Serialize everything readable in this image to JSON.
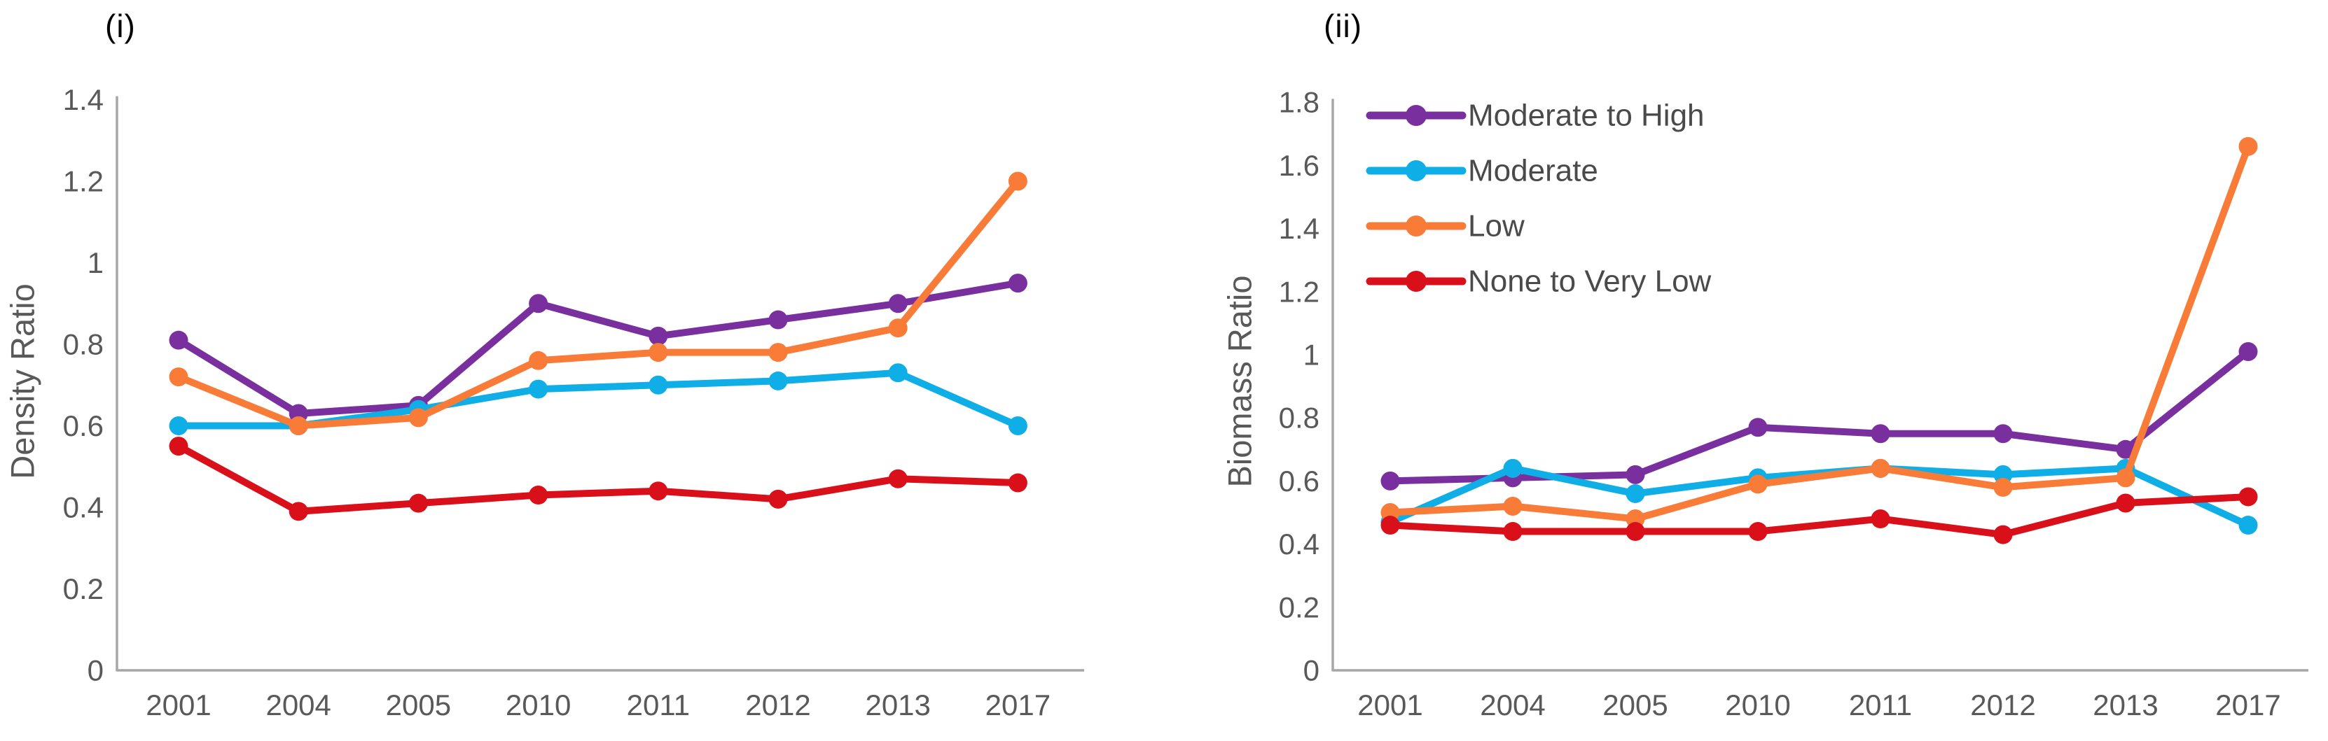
{
  "page": {
    "background": "#ffffff",
    "axis_line_color": "#a6a6a6",
    "tick_text_color": "#595959",
    "legend_text_color": "#4a4a4a"
  },
  "panels": [
    {
      "label": "(i)",
      "y_axis_title": "Density Ratio"
    },
    {
      "label": "(ii)",
      "y_axis_title": "Biomass Ratio"
    }
  ],
  "legend": {
    "entries": [
      "Moderate to High",
      "Moderate",
      "Low",
      "None to Very Low"
    ]
  },
  "colors": {
    "moderate_to_high": "#7A2F9F",
    "moderate": "#0FAEE6",
    "low": "#F97B38",
    "none_to_very_low": "#D9101A"
  },
  "chart_data": [
    {
      "type": "line",
      "title": "(i)",
      "xlabel": "",
      "ylabel": "Density Ratio",
      "categories": [
        "2001",
        "2004",
        "2005",
        "2010",
        "2011",
        "2012",
        "2013",
        "2017"
      ],
      "ylim": [
        0,
        1.4
      ],
      "yticks": [
        "1.4",
        "1.2",
        "1",
        "0.8",
        "0.6",
        "0.4",
        "0.2",
        "0"
      ],
      "grid": false,
      "legend": false,
      "legend_position": "none",
      "series": [
        {
          "name": "Moderate to High",
          "color": "#7A2F9F",
          "values": [
            0.81,
            0.63,
            0.65,
            0.9,
            0.82,
            0.86,
            0.9,
            0.95
          ]
        },
        {
          "name": "Moderate",
          "color": "#0FAEE6",
          "values": [
            0.6,
            0.6,
            0.64,
            0.69,
            0.7,
            0.71,
            0.73,
            0.6
          ]
        },
        {
          "name": "Low",
          "color": "#F97B38",
          "values": [
            0.72,
            0.6,
            0.62,
            0.76,
            0.78,
            0.78,
            0.84,
            1.2
          ]
        },
        {
          "name": "None to Very Low",
          "color": "#D9101A",
          "values": [
            0.55,
            0.39,
            0.41,
            0.43,
            0.44,
            0.42,
            0.47,
            0.46
          ]
        }
      ]
    },
    {
      "type": "line",
      "title": "(ii)",
      "xlabel": "",
      "ylabel": "Biomass Ratio",
      "categories": [
        "2001",
        "2004",
        "2005",
        "2010",
        "2011",
        "2012",
        "2013",
        "2017"
      ],
      "ylim": [
        0,
        1.8
      ],
      "yticks": [
        "1.8",
        "1.6",
        "1.4",
        "1.2",
        "1",
        "0.8",
        "0.6",
        "0.4",
        "0.2",
        "0"
      ],
      "grid": false,
      "legend": true,
      "legend_position": "top-left",
      "series": [
        {
          "name": "Moderate to High",
          "color": "#7A2F9F",
          "values": [
            0.6,
            0.61,
            0.62,
            0.77,
            0.75,
            0.75,
            0.7,
            1.01
          ]
        },
        {
          "name": "Moderate",
          "color": "#0FAEE6",
          "values": [
            0.47,
            0.64,
            0.56,
            0.61,
            0.64,
            0.62,
            0.64,
            0.46
          ]
        },
        {
          "name": "Low",
          "color": "#F97B38",
          "values": [
            0.5,
            0.52,
            0.48,
            0.59,
            0.64,
            0.58,
            0.61,
            1.66
          ]
        },
        {
          "name": "None to Very Low",
          "color": "#D9101A",
          "values": [
            0.46,
            0.44,
            0.44,
            0.44,
            0.48,
            0.43,
            0.53,
            0.55
          ]
        }
      ]
    }
  ]
}
